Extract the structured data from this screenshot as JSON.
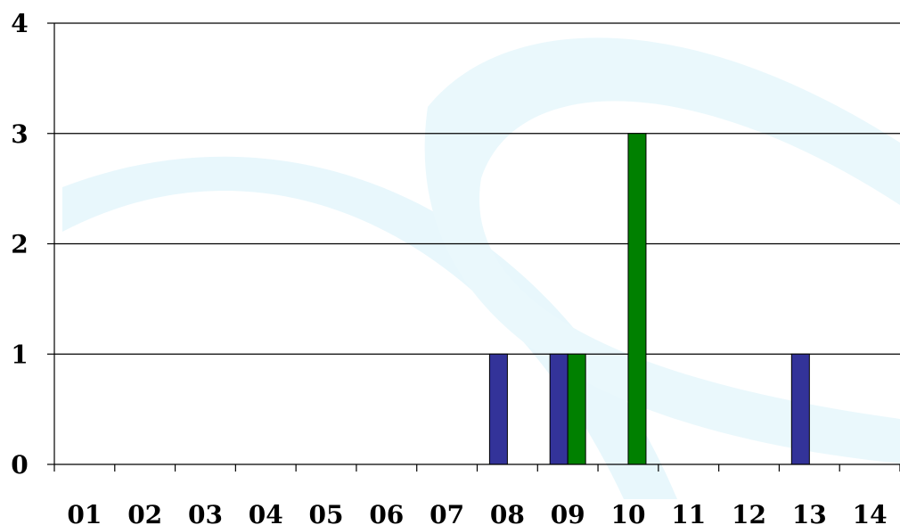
{
  "chart_data": {
    "type": "bar",
    "title": "",
    "xlabel": "",
    "ylabel": "",
    "categories": [
      "01",
      "02",
      "03",
      "04",
      "05",
      "06",
      "07",
      "08",
      "09",
      "10",
      "11",
      "12",
      "13",
      "14"
    ],
    "y_ticks": [
      "0",
      "1",
      "2",
      "3",
      "4"
    ],
    "ylim": [
      0,
      4
    ],
    "grid": true,
    "legend": "none",
    "series": [
      {
        "color": "#333399",
        "values": [
          0,
          0,
          0,
          0,
          0,
          0,
          0,
          1,
          1,
          0,
          0,
          0,
          1,
          0
        ]
      },
      {
        "color": "#008000",
        "values": [
          0,
          0,
          0,
          0,
          0,
          0,
          0,
          0,
          1,
          3,
          0,
          0,
          0,
          0
        ]
      }
    ]
  },
  "colors": {
    "background": "#ffffff",
    "watermark": "#e6f6fb"
  }
}
